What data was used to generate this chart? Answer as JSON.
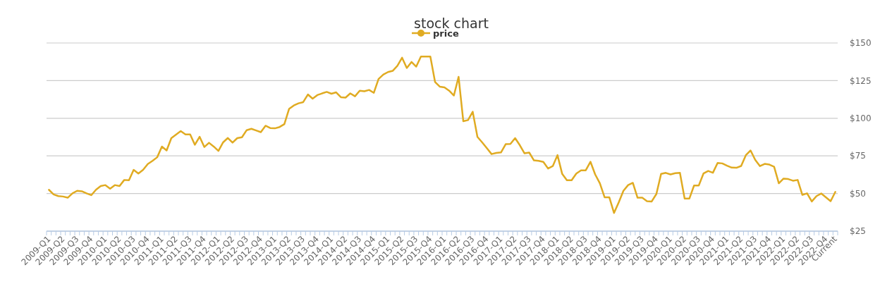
{
  "chart_data": {
    "type": "line",
    "title": "stock chart",
    "categories": [
      "2009-Q1",
      null,
      null,
      "2009-Q2",
      null,
      null,
      "2009-Q3",
      null,
      null,
      "2009-Q4",
      null,
      null,
      "2010-Q1",
      null,
      null,
      "2010-Q2",
      null,
      null,
      "2010-Q3",
      null,
      null,
      "2010-Q4",
      null,
      null,
      "2011-Q1",
      null,
      null,
      "2011-Q2",
      null,
      null,
      "2011-Q3",
      null,
      null,
      "2011-Q4",
      null,
      null,
      "2012-Q1",
      null,
      null,
      "2012-Q2",
      null,
      null,
      "2012-Q3",
      null,
      null,
      "2012-Q4",
      null,
      null,
      "2013-Q1",
      null,
      null,
      "2013-Q2",
      null,
      null,
      "2013-Q3",
      null,
      null,
      "2013-Q4",
      null,
      null,
      "2014-Q1",
      null,
      null,
      "2014-Q2",
      null,
      null,
      "2014-Q3",
      null,
      null,
      "2014-Q4",
      null,
      null,
      "2015-Q1",
      null,
      null,
      "2015-Q2",
      null,
      null,
      "2015-Q3",
      null,
      null,
      "2015-Q4",
      null,
      null,
      "2016-Q1",
      null,
      null,
      "2016-Q2",
      null,
      null,
      "2016-Q3",
      null,
      null,
      "2016-Q4",
      null,
      null,
      "2017-Q1",
      null,
      null,
      "2017-Q2",
      null,
      null,
      "2017-Q3",
      null,
      null,
      "2017-Q4",
      null,
      null,
      "2018-Q1",
      null,
      null,
      "2018-Q2",
      null,
      null,
      "2018-Q3",
      null,
      null,
      "2018-Q4",
      null,
      null,
      "2019-Q1",
      null,
      null,
      "2019-Q2",
      null,
      null,
      "2019-Q3",
      null,
      null,
      "2019-Q4",
      null,
      null,
      "2020-Q1",
      null,
      null,
      "2020-Q2",
      null,
      null,
      "2020-Q3",
      null,
      null,
      "2020-Q4",
      null,
      null,
      "2021-Q1",
      null,
      null,
      "2021-Q2",
      null,
      null,
      "2021-Q3",
      null,
      null,
      "2021-Q4",
      null,
      null,
      "2022-Q1",
      null,
      null,
      "2022-Q2",
      null,
      null,
      "2022-Q3",
      null,
      null,
      "2022-Q4",
      null,
      "Current"
    ],
    "series": [
      {
        "name": "price",
        "color": "#e0ab22",
        "values": [
          52.5,
          49.4,
          48.3,
          48.0,
          47.2,
          50.1,
          51.8,
          51.5,
          50.1,
          48.9,
          52.5,
          55.0,
          55.6,
          53.2,
          55.6,
          55.0,
          59.0,
          58.8,
          65.7,
          63.3,
          65.7,
          69.6,
          71.7,
          74.1,
          81.2,
          78.6,
          86.8,
          89.1,
          91.5,
          89.3,
          89.3,
          82.4,
          87.7,
          80.9,
          83.7,
          81.2,
          78.3,
          84.0,
          86.9,
          83.8,
          86.8,
          87.4,
          92.1,
          93.0,
          91.9,
          90.8,
          95.0,
          93.5,
          93.3,
          94.2,
          96.1,
          106.2,
          108.5,
          109.9,
          110.7,
          115.8,
          113.0,
          115.4,
          116.5,
          117.5,
          116.3,
          117.2,
          114.0,
          113.7,
          116.5,
          114.6,
          118.3,
          117.9,
          118.8,
          116.9,
          126.1,
          129.0,
          130.7,
          131.5,
          134.8,
          140.2,
          133.4,
          137.4,
          134.3,
          141.0,
          141.0,
          141.0,
          124.1,
          121.0,
          120.5,
          118.3,
          115.1,
          127.5,
          98.0,
          98.8,
          104.3,
          87.6,
          84.0,
          80.1,
          76.2,
          77.0,
          77.3,
          82.8,
          82.9,
          86.8,
          82.1,
          76.7,
          77.2,
          72.0,
          71.7,
          71.0,
          66.6,
          68.2,
          75.5,
          63.0,
          58.8,
          58.8,
          63.3,
          65.4,
          65.4,
          71.1,
          62.7,
          56.8,
          47.5,
          47.5,
          37.1,
          44.1,
          51.8,
          55.6,
          57.1,
          47.2,
          47.2,
          44.9,
          44.7,
          49.7,
          63.0,
          63.7,
          62.7,
          63.5,
          63.7,
          46.6,
          46.6,
          55.3,
          55.3,
          63.3,
          65.0,
          63.8,
          70.3,
          70.0,
          68.5,
          67.2,
          67.1,
          68.3,
          75.5,
          78.6,
          72.3,
          68.2,
          69.7,
          69.2,
          67.8,
          56.8,
          59.9,
          59.6,
          58.5,
          59.0,
          49.1,
          50.1,
          44.7,
          48.3,
          50.0,
          47.5,
          44.9,
          51.1
        ]
      }
    ],
    "ylim": [
      25,
      150
    ],
    "yticks": [
      {
        "value": 25,
        "label": "$25"
      },
      {
        "value": 50,
        "label": "$50"
      },
      {
        "value": 75,
        "label": "$75"
      },
      {
        "value": 100,
        "label": "$100"
      },
      {
        "value": 125,
        "label": "$125"
      },
      {
        "value": 150,
        "label": "$150"
      }
    ],
    "grid": "y",
    "legend": "top"
  }
}
